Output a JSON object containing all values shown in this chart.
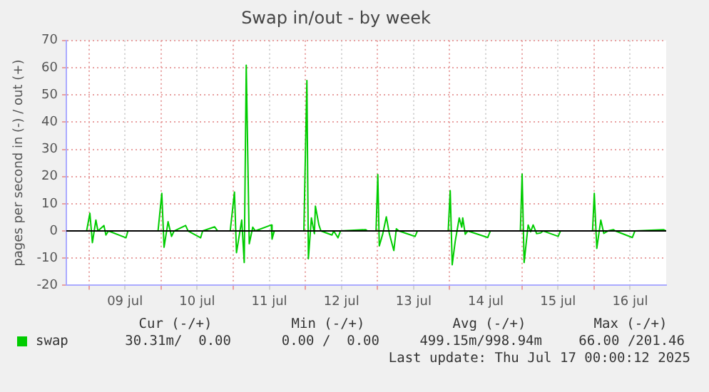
{
  "chart_data": {
    "type": "line",
    "title": "Swap in/out - by week",
    "ylabel": "pages per second in (-) / out (+)",
    "xlim": [
      "2025-07-08T16:30",
      "2025-07-17T00:00"
    ],
    "xticks": [
      {
        "value": "2025-07-09T00:00",
        "label": null
      },
      {
        "value": "2025-07-09T12:00",
        "label": "09 jul"
      },
      {
        "value": "2025-07-10T00:00",
        "label": null
      },
      {
        "value": "2025-07-10T12:00",
        "label": "10 jul"
      },
      {
        "value": "2025-07-11T00:00",
        "label": null
      },
      {
        "value": "2025-07-11T12:00",
        "label": "11 jul"
      },
      {
        "value": "2025-07-12T00:00",
        "label": null
      },
      {
        "value": "2025-07-12T12:00",
        "label": "12 jul"
      },
      {
        "value": "2025-07-13T00:00",
        "label": null
      },
      {
        "value": "2025-07-13T12:00",
        "label": "13 jul"
      },
      {
        "value": "2025-07-14T00:00",
        "label": null
      },
      {
        "value": "2025-07-14T12:00",
        "label": "14 jul"
      },
      {
        "value": "2025-07-15T00:00",
        "label": null
      },
      {
        "value": "2025-07-15T12:00",
        "label": "15 jul"
      },
      {
        "value": "2025-07-16T00:00",
        "label": null
      },
      {
        "value": "2025-07-16T12:00",
        "label": "16 jul"
      }
    ],
    "ylim": [
      -20,
      70
    ],
    "yticks": [
      -20,
      -10,
      0,
      10,
      20,
      30,
      40,
      50,
      60,
      70
    ],
    "grid": true,
    "legend": "bottom left",
    "ref_lines": [
      {
        "axis": "y",
        "value": 0,
        "color": "#000000"
      }
    ],
    "series": [
      {
        "name": "swap",
        "color": "#00cc00",
        "x": [
          "2025-07-08T16:30",
          "2025-07-08T23:15",
          "2025-07-09T00:20",
          "2025-07-09T01:10",
          "2025-07-09T02:20",
          "2025-07-09T03:00",
          "2025-07-09T05:00",
          "2025-07-09T05:40",
          "2025-07-09T06:30",
          "2025-07-09T12:20",
          "2025-07-09T13:00",
          "2025-07-09T23:00",
          "2025-07-10T00:15",
          "2025-07-10T01:00",
          "2025-07-10T02:20",
          "2025-07-10T03:30",
          "2025-07-10T04:20",
          "2025-07-10T08:10",
          "2025-07-10T09:00",
          "2025-07-10T13:10",
          "2025-07-10T13:50",
          "2025-07-10T17:50",
          "2025-07-10T18:50",
          "2025-07-10T23:00",
          "2025-07-11T00:25",
          "2025-07-11T01:05",
          "2025-07-11T02:50",
          "2025-07-11T03:40",
          "2025-07-11T04:20",
          "2025-07-11T05:20",
          "2025-07-11T06:30",
          "2025-07-11T07:20",
          "2025-07-11T12:40",
          "2025-07-11T12:55",
          "2025-07-11T13:40",
          "2025-07-11T23:30",
          "2025-07-12T00:30",
          "2025-07-12T01:00",
          "2025-07-12T02:00",
          "2025-07-12T03:00",
          "2025-07-12T03:20",
          "2025-07-12T04:30",
          "2025-07-12T05:10",
          "2025-07-12T08:50",
          "2025-07-12T09:25",
          "2025-07-12T10:50",
          "2025-07-12T11:40",
          "2025-07-12T20:00",
          "2025-07-12T20:40",
          "2025-07-12T23:30",
          "2025-07-13T00:05",
          "2025-07-13T00:35",
          "2025-07-13T01:45",
          "2025-07-13T02:55",
          "2025-07-13T03:55",
          "2025-07-13T05:25",
          "2025-07-13T06:15",
          "2025-07-13T07:05",
          "2025-07-13T12:30",
          "2025-07-13T13:15",
          "2025-07-13T23:30",
          "2025-07-14T00:10",
          "2025-07-14T00:50",
          "2025-07-14T01:50",
          "2025-07-14T03:10",
          "2025-07-14T04:00",
          "2025-07-14T04:20",
          "2025-07-14T05:10",
          "2025-07-14T06:00",
          "2025-07-14T12:40",
          "2025-07-14T13:30",
          "2025-07-14T23:30",
          "2025-07-15T00:05",
          "2025-07-15T00:45",
          "2025-07-15T02:05",
          "2025-07-15T02:55",
          "2025-07-15T03:45",
          "2025-07-15T04:55",
          "2025-07-15T06:15",
          "2025-07-15T07:05",
          "2025-07-15T12:05",
          "2025-07-15T12:50",
          "2025-07-15T23:30",
          "2025-07-16T00:05",
          "2025-07-16T00:55",
          "2025-07-16T02:15",
          "2025-07-16T03:15",
          "2025-07-16T04:35",
          "2025-07-16T06:25",
          "2025-07-16T07:05",
          "2025-07-16T12:45",
          "2025-07-16T13:35",
          "2025-07-16T23:05",
          "2025-07-17T00:00"
        ],
        "values": [
          0,
          0,
          6.5,
          -4.3,
          4,
          0,
          2,
          -1.5,
          0,
          -2.5,
          0,
          0,
          13.8,
          -6,
          3.4,
          -2,
          0,
          2,
          0,
          -2.5,
          0,
          1.5,
          0,
          0,
          14.3,
          -8,
          4,
          -11.6,
          60.9,
          -4.7,
          1.4,
          0,
          2.2,
          -3,
          0,
          0,
          55.3,
          -10.2,
          4.8,
          -1,
          9.1,
          2.2,
          0,
          -1.5,
          0,
          -2.5,
          0,
          0.5,
          0,
          0,
          20.7,
          -5.5,
          -1,
          5.2,
          -1,
          -7.2,
          0.8,
          0,
          -2,
          0,
          0,
          14.8,
          -12.4,
          -3.8,
          4.8,
          1.4,
          4.8,
          -1.2,
          0,
          -2.4,
          0,
          0,
          20.9,
          -11.6,
          2.2,
          -0.3,
          2.2,
          -1,
          -0.7,
          0,
          -2,
          0,
          0,
          13.8,
          -6.4,
          4,
          -0.9,
          0,
          0.5,
          0,
          -2.4,
          0,
          0.5,
          0
        ]
      }
    ],
    "annotations": [
      "Cur (-/+)",
      "Min (-/+)",
      "Avg (-/+)",
      "Max (-/+)",
      "30.31m/  0.00",
      "0.00 /  0.00",
      "499.15m/998.94m",
      "66.00 /201.46",
      "Last update: Thu Jul 17 00:00:12 2025"
    ]
  }
}
